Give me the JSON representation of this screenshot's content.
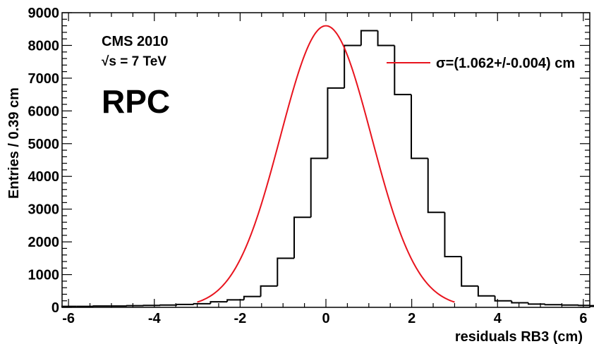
{
  "chart_data": {
    "type": "histogram",
    "xlabel": "residuals RB3 (cm)",
    "ylabel": "Entries / 0.39 cm",
    "xlim": [
      -6.15,
      6.15
    ],
    "ylim": [
      0,
      9000
    ],
    "x_ticks": [
      "-6",
      "-4",
      "-2",
      "0",
      "2",
      "4",
      "6"
    ],
    "x_tick_values": [
      -6,
      -4,
      -2,
      0,
      2,
      4,
      6
    ],
    "y_ticks": [
      "0",
      "1000",
      "2000",
      "3000",
      "4000",
      "5000",
      "6000",
      "7000",
      "8000",
      "9000"
    ],
    "y_tick_values": [
      0,
      1000,
      2000,
      3000,
      4000,
      5000,
      6000,
      7000,
      8000,
      9000
    ],
    "bin_width": 0.39,
    "bin_low_edge": -6.2,
    "histogram_values": [
      30,
      30,
      40,
      40,
      50,
      60,
      70,
      90,
      110,
      170,
      230,
      330,
      650,
      1500,
      2750,
      4550,
      6700,
      8000,
      8450,
      8000,
      6500,
      4550,
      2900,
      1550,
      650,
      350,
      200,
      140,
      100,
      80,
      70,
      60,
      50,
      40,
      30
    ],
    "fit": {
      "function": "gaussian",
      "amplitude": 8600,
      "mean": 0.0,
      "sigma": 1.062,
      "range": [
        -3.0,
        3.0
      ],
      "color": "#e8141e",
      "legend": "σ=(1.062+/-0.004) cm"
    },
    "histogram_color": "#000000",
    "grid": false,
    "legend_placement": "top-right",
    "annotations": {
      "experiment": "CMS 2010",
      "energy": "√s = 7 TeV",
      "detector": "RPC"
    }
  }
}
